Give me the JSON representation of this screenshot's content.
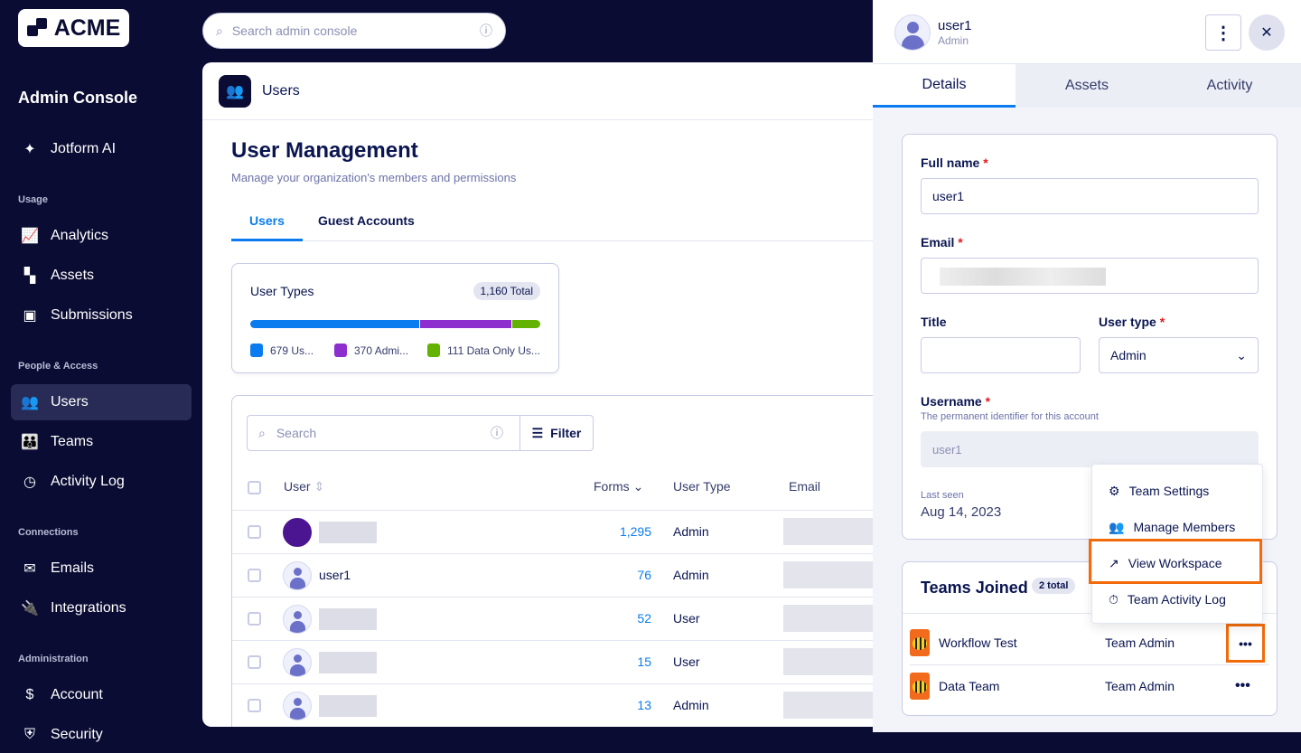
{
  "brand": {
    "logo": "ACME"
  },
  "topsearch": {
    "placeholder": "Search admin console"
  },
  "sidebar": {
    "title": "Admin Console",
    "items_top": [
      {
        "label": "Jotform AI",
        "icon": "sparkle-icon"
      }
    ],
    "sections": [
      {
        "label": "Usage",
        "items": [
          {
            "label": "Analytics"
          },
          {
            "label": "Assets"
          },
          {
            "label": "Submissions"
          }
        ]
      },
      {
        "label": "People & Access",
        "items": [
          {
            "label": "Users",
            "active": true
          },
          {
            "label": "Teams"
          },
          {
            "label": "Activity Log"
          }
        ]
      },
      {
        "label": "Connections",
        "items": [
          {
            "label": "Emails"
          },
          {
            "label": "Integrations"
          }
        ]
      },
      {
        "label": "Administration",
        "items": [
          {
            "label": "Account"
          },
          {
            "label": "Security"
          }
        ]
      }
    ]
  },
  "main": {
    "breadcrumb": "Users",
    "title": "User Management",
    "subtitle": "Manage your organization's members and permissions",
    "tabs": [
      {
        "label": "Users",
        "active": true
      },
      {
        "label": "Guest Accounts"
      }
    ],
    "user_types": {
      "title": "User Types",
      "total": "1,160 Total",
      "segments": [
        {
          "label": "679 Us...",
          "value": 679,
          "color": "#0a7cf0"
        },
        {
          "label": "370 Admi...",
          "value": 370,
          "color": "#8d2fcf"
        },
        {
          "label": "111 Data Only Us...",
          "value": 111,
          "color": "#64b200"
        }
      ]
    },
    "table": {
      "search_placeholder": "Search",
      "filter_label": "Filter",
      "columns": {
        "user": "User",
        "forms": "Forms",
        "type": "User Type",
        "email": "Email"
      },
      "rows": [
        {
          "name": "",
          "forms": "1,295",
          "type": "Admin"
        },
        {
          "name": "user1",
          "forms": "76",
          "type": "Admin"
        },
        {
          "name": "",
          "forms": "52",
          "type": "User"
        },
        {
          "name": "",
          "forms": "15",
          "type": "User"
        },
        {
          "name": "",
          "forms": "13",
          "type": "Admin"
        }
      ]
    }
  },
  "panel": {
    "name": "user1",
    "role": "Admin",
    "tabs": [
      {
        "label": "Details",
        "active": true
      },
      {
        "label": "Assets"
      },
      {
        "label": "Activity"
      }
    ],
    "form": {
      "fullname_label": "Full name",
      "fullname": "user1",
      "email_label": "Email",
      "title_label": "Title",
      "title": "",
      "usertype_label": "User type",
      "usertype": "Admin",
      "username_label": "Username",
      "username_hint": "The permanent identifier for this account",
      "username": "user1",
      "lastseen_label": "Last seen",
      "lastseen": "Aug 14, 2023"
    },
    "teams": {
      "title": "Teams Joined",
      "count": "2 total",
      "rows": [
        {
          "name": "Workflow Test",
          "role": "Team Admin"
        },
        {
          "name": "Data Team",
          "role": "Team Admin"
        }
      ]
    },
    "menu": [
      "Team Settings",
      "Manage Members",
      "View Workspace",
      "Team Activity Log"
    ],
    "highlight_color": "#f26b0b"
  }
}
